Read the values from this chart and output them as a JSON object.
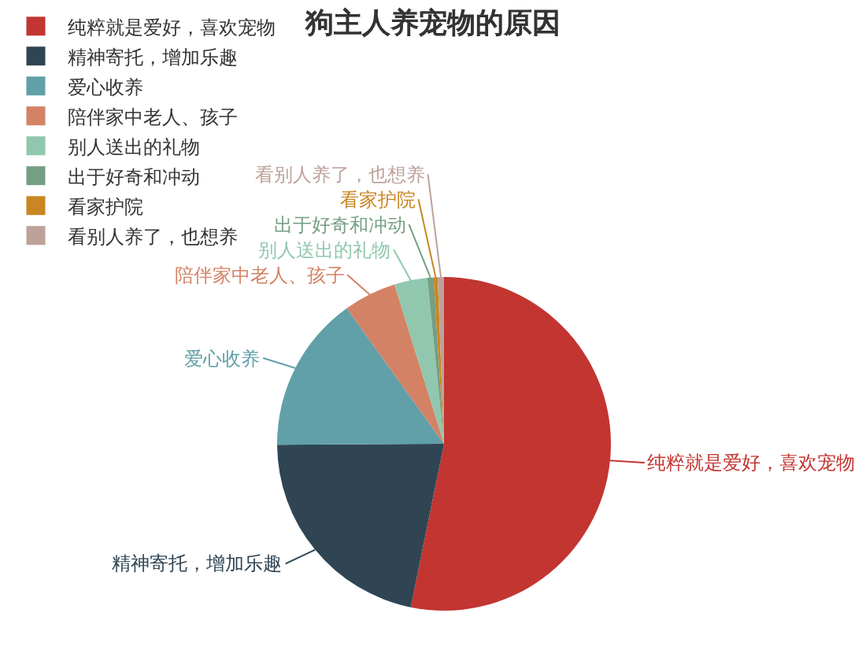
{
  "chart_data": {
    "type": "pie",
    "title": "狗主人养宠物的原因",
    "categories": [
      "纯粹就是爱好，喜欢宠物",
      "精神寄托，增加乐趣",
      "爱心收养",
      "陪伴家中老人、孩子",
      "别人送出的礼物",
      "出于好奇和冲动",
      "看家护院",
      "看别人养了，也想养"
    ],
    "values": [
      53.2,
      21.7,
      15.2,
      5.1,
      3.2,
      0.6,
      0.4,
      0.6
    ],
    "colors": [
      "#c23531",
      "#2f4554",
      "#61a0a8",
      "#d48265",
      "#91c7ae",
      "#749f83",
      "#ca8622",
      "#bda29a"
    ],
    "legend": "top left"
  }
}
